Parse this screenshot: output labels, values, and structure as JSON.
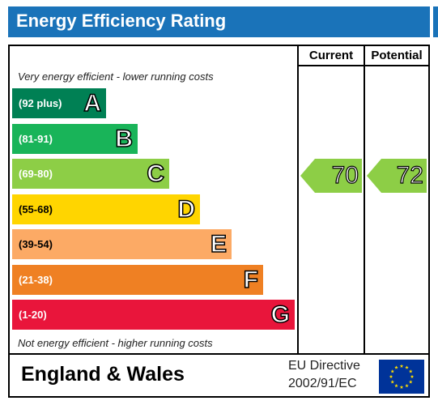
{
  "header": {
    "title": "Energy Efficiency Rating"
  },
  "chart_data": {
    "type": "bar",
    "columns": [
      "Current",
      "Potential"
    ],
    "top_caption": "Very energy efficient - lower running costs",
    "bottom_caption": "Not energy efficient - higher running costs",
    "bands": [
      {
        "letter": "A",
        "range": "(92 plus)",
        "min": 92,
        "max": 100,
        "color": "#008054"
      },
      {
        "letter": "B",
        "range": "(81-91)",
        "min": 81,
        "max": 91,
        "color": "#19b459"
      },
      {
        "letter": "C",
        "range": "(69-80)",
        "min": 69,
        "max": 80,
        "color": "#8dce46"
      },
      {
        "letter": "D",
        "range": "(55-68)",
        "min": 55,
        "max": 68,
        "color": "#ffd500"
      },
      {
        "letter": "E",
        "range": "(39-54)",
        "min": 39,
        "max": 54,
        "color": "#fcaa65"
      },
      {
        "letter": "F",
        "range": "(21-38)",
        "min": 21,
        "max": 38,
        "color": "#ef8023"
      },
      {
        "letter": "G",
        "range": "(1-20)",
        "min": 1,
        "max": 20,
        "color": "#e9153b"
      }
    ],
    "current": {
      "value": 70,
      "band": "C",
      "color": "#8dce46"
    },
    "potential": {
      "value": 72,
      "band": "C",
      "color": "#8dce46"
    }
  },
  "footer": {
    "region": "England & Wales",
    "directive_line1": "EU Directive",
    "directive_line2": "2002/91/EC",
    "flag_icon": "eu-flag-icon",
    "flag_color": "#003399",
    "star_color": "#ffdd00"
  }
}
